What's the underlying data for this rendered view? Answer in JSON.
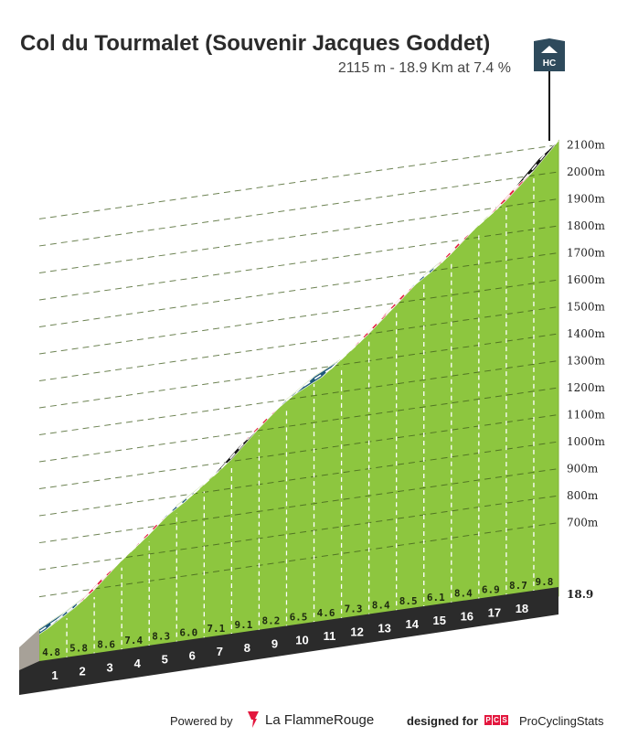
{
  "header": {
    "title": "Col du Tourmalet (Souvenir Jacques Goddet)",
    "subtitle": "2115 m - 18.9 Km at 7.4 %",
    "category_badge": "HC"
  },
  "chart_data": {
    "type": "area",
    "title": "Col du Tourmalet (Souvenir Jacques Goddet)",
    "subtitle": "2115 m - 18.9 Km at 7.4 %",
    "x_unit": "km",
    "y_unit": "m",
    "ylim": [
      580,
      2115
    ],
    "y_ticks": [
      "700m",
      "800m",
      "900m",
      "1000m",
      "1100m",
      "1200m",
      "1300m",
      "1400m",
      "1500m",
      "1600m",
      "1700m",
      "1800m",
      "1900m",
      "2000m",
      "2100m"
    ],
    "y_tick_values": [
      700,
      800,
      900,
      1000,
      1100,
      1200,
      1300,
      1400,
      1500,
      1600,
      1700,
      1800,
      1900,
      2000,
      2100
    ],
    "km_labels": [
      "1",
      "2",
      "3",
      "4",
      "5",
      "6",
      "7",
      "8",
      "9",
      "10",
      "11",
      "12",
      "13",
      "14",
      "15",
      "16",
      "17",
      "18"
    ],
    "end_label": "18.9",
    "km_end": [
      1,
      2,
      3,
      4,
      5,
      6,
      7,
      8,
      9,
      10,
      11,
      12,
      13,
      14,
      15,
      16,
      17,
      18,
      18.9
    ],
    "gradients": [
      "4.8",
      "5.8",
      "8.6",
      "7.4",
      "8.3",
      "6.0",
      "7.1",
      "9.1",
      "8.2",
      "6.5",
      "4.6",
      "7.3",
      "8.4",
      "8.5",
      "6.1",
      "8.4",
      "6.9",
      "8.7",
      "9.8"
    ],
    "gradient_values": [
      4.8,
      5.8,
      8.6,
      7.4,
      8.3,
      6.0,
      7.1,
      9.1,
      8.2,
      6.5,
      4.6,
      7.3,
      8.4,
      8.5,
      6.1,
      8.4,
      6.9,
      8.7,
      9.8
    ],
    "colors": {
      "area": "#8dc63f",
      "road_easy": "#1f5a7a",
      "road_hard": "#e21e3c",
      "road_steep": "#111111",
      "base": "#2b2b2b",
      "start_face": "#a7a198"
    }
  },
  "footer": {
    "powered": "Powered by",
    "brand_a": "La Flamme",
    "brand_b": "Rouge",
    "designed": "designed for",
    "pcs_letters": [
      "P",
      "C",
      "S"
    ],
    "pcs_name": "ProCyclingStats"
  }
}
